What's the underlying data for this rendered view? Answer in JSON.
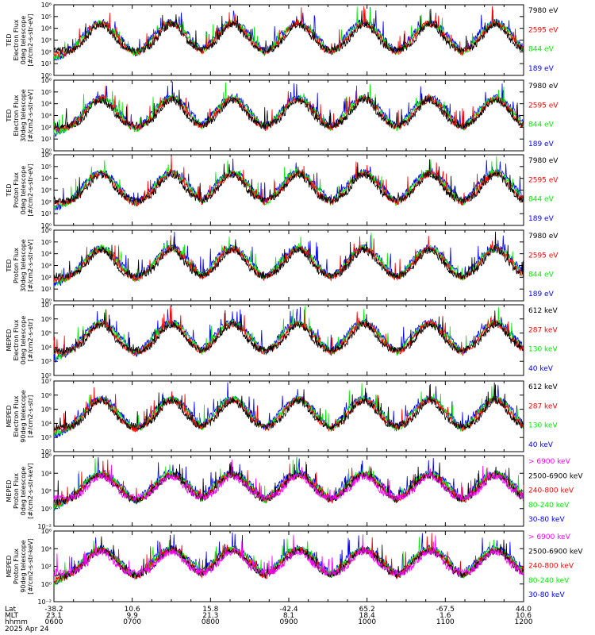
{
  "colors": {
    "black": "#000000",
    "red": "#ff0000",
    "green": "#00ee00",
    "blue": "#0000ff",
    "magenta": "#ff00ff"
  },
  "chart_data": {
    "type": "line",
    "title": "",
    "date_label": "2025 Apr 24",
    "time_range": [
      "06:00",
      "12:00"
    ],
    "x_axis": {
      "rows": [
        {
          "name": "Lat",
          "values": [
            "-38.2",
            "10.6",
            "15.8",
            "-42.4",
            "65.2",
            "-67.5",
            "44.0"
          ]
        },
        {
          "name": "MLT",
          "values": [
            "23.1",
            "9.9",
            "21.3",
            "8.1",
            "18.4",
            "1.6",
            "10.6"
          ]
        },
        {
          "name": "hhmm",
          "values": [
            "0600",
            "0700",
            "0800",
            "0900",
            "1000",
            "1100",
            "1200"
          ]
        }
      ]
    },
    "panels": [
      {
        "ylabel": [
          "TED",
          "Electron Flux",
          "0deg telescope",
          "[#/cm2-s-str-eV]"
        ],
        "yticks": [
          "10⁶",
          "10⁵",
          "10⁴",
          "10³",
          "10²",
          "10¹",
          "10⁰"
        ],
        "series": [
          {
            "name": "7980 eV",
            "color": "black"
          },
          {
            "name": "2595 eV",
            "color": "red"
          },
          {
            "name": "844 eV",
            "color": "green"
          },
          {
            "name": "189 eV",
            "color": "blue"
          }
        ]
      },
      {
        "ylabel": [
          "TED",
          "Electron Flux",
          "30deg telescope",
          "[#/cm2-s-str-eV]"
        ],
        "yticks": [
          "10⁶",
          "10⁵",
          "10⁴",
          "10³",
          "10²",
          "10¹",
          "10⁰"
        ],
        "series": [
          {
            "name": "7980 eV",
            "color": "black"
          },
          {
            "name": "2595 eV",
            "color": "red"
          },
          {
            "name": "844 eV",
            "color": "green"
          },
          {
            "name": "189 eV",
            "color": "blue"
          }
        ]
      },
      {
        "ylabel": [
          "TED",
          "Proton Flux",
          "0deg telescope",
          "[#/cm2-s-str-eV]"
        ],
        "yticks": [
          "10⁶",
          "10⁵",
          "10⁴",
          "10³",
          "10²",
          "10¹",
          "10⁰"
        ],
        "series": [
          {
            "name": "7980 eV",
            "color": "black"
          },
          {
            "name": "2595 eV",
            "color": "red"
          },
          {
            "name": "844 eV",
            "color": "green"
          },
          {
            "name": "189 eV",
            "color": "blue"
          }
        ]
      },
      {
        "ylabel": [
          "TED",
          "Proton Flux",
          "30deg telescope",
          "[#/cm2-s-str-eV]"
        ],
        "yticks": [
          "10⁶",
          "10⁵",
          "10⁴",
          "10³",
          "10²",
          "10¹",
          "10⁰"
        ],
        "series": [
          {
            "name": "7980 eV",
            "color": "black"
          },
          {
            "name": "2595 eV",
            "color": "red"
          },
          {
            "name": "844 eV",
            "color": "green"
          },
          {
            "name": "189 eV",
            "color": "blue"
          }
        ]
      },
      {
        "ylabel": [
          "MEPED",
          "Electron Flux",
          "0deg telescope",
          "[#/cm2-s-str]"
        ],
        "yticks": [
          "10⁷",
          "10⁶",
          "10⁵",
          "10⁴",
          "10³",
          "10²"
        ],
        "series": [
          {
            "name": "612 keV",
            "color": "black"
          },
          {
            "name": "287 keV",
            "color": "red"
          },
          {
            "name": "130 keV",
            "color": "green"
          },
          {
            "name": "40 keV",
            "color": "blue"
          }
        ]
      },
      {
        "ylabel": [
          "MEPED",
          "Electron Flux",
          "90deg telescope",
          "[#/cm2-s-str]"
        ],
        "yticks": [
          "10⁷",
          "10⁶",
          "10⁵",
          "10⁴",
          "10³",
          "10²"
        ],
        "series": [
          {
            "name": "612 keV",
            "color": "black"
          },
          {
            "name": "287 keV",
            "color": "red"
          },
          {
            "name": "130 keV",
            "color": "green"
          },
          {
            "name": "40 keV",
            "color": "blue"
          }
        ]
      },
      {
        "ylabel": [
          "MEPED",
          "Proton Flux",
          "0deg telescope",
          "[#/cm2-s-str-keV]"
        ],
        "yticks": [
          "10⁶",
          "10⁴",
          "10²",
          "10⁰",
          "10⁻²"
        ],
        "series": [
          {
            "name": "> 6900 keV",
            "color": "magenta"
          },
          {
            "name": "2500-6900 keV",
            "color": "black"
          },
          {
            "name": "240-800 keV",
            "color": "red"
          },
          {
            "name": "80-240 keV",
            "color": "green"
          },
          {
            "name": "30-80 keV",
            "color": "blue"
          }
        ]
      },
      {
        "ylabel": [
          "MEPED",
          "Proton Flux",
          "90deg telescope",
          "[#/cm2-s-str-keV]"
        ],
        "yticks": [
          "10⁶",
          "10⁴",
          "10²",
          "10⁰",
          "10⁻²"
        ],
        "series": [
          {
            "name": "> 6900 keV",
            "color": "magenta"
          },
          {
            "name": "2500-6900 keV",
            "color": "black"
          },
          {
            "name": "240-800 keV",
            "color": "red"
          },
          {
            "name": "80-240 keV",
            "color": "green"
          },
          {
            "name": "30-80 keV",
            "color": "blue"
          }
        ]
      }
    ]
  }
}
